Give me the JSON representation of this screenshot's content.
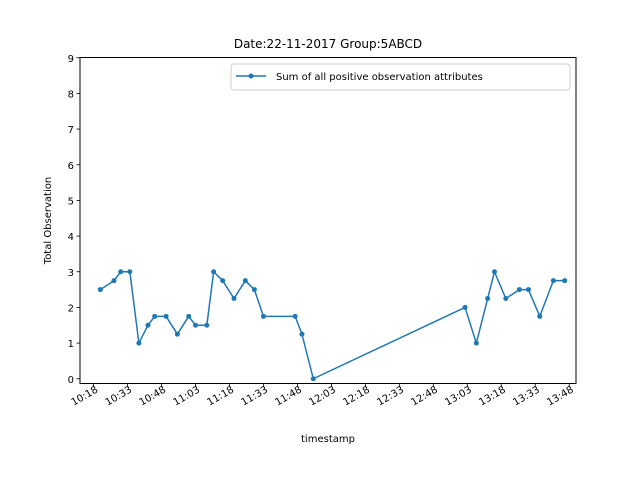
{
  "chart_data": {
    "type": "line",
    "title": "Date:22-11-2017  Group:5ABCD",
    "xlabel": "timestamp",
    "ylabel": "Total Observation",
    "ylim": [
      0,
      9
    ],
    "yticks": [
      "0",
      "1",
      "2",
      "3",
      "4",
      "5",
      "6",
      "7",
      "8",
      "9"
    ],
    "xlim": [
      "10:12",
      "13:51"
    ],
    "xticks": [
      "10:18",
      "10:33",
      "10:48",
      "11:03",
      "11:18",
      "11:33",
      "11:48",
      "12:03",
      "12:18",
      "12:33",
      "12:48",
      "13:03",
      "13:18",
      "13:33",
      "13:48"
    ],
    "grid": false,
    "legend_position": "top-right",
    "series": [
      {
        "name": "Sum of all positive observation attributes",
        "color": "#1f77b4",
        "marker": "circle",
        "x": [
          "10:21",
          "10:27",
          "10:30",
          "10:34",
          "10:38",
          "10:42",
          "10:45",
          "10:50",
          "10:55",
          "11:00",
          "11:03",
          "11:08",
          "11:11",
          "11:15",
          "11:20",
          "11:25",
          "11:29",
          "11:33",
          "11:47",
          "11:50",
          "11:55",
          "13:02",
          "13:07",
          "13:12",
          "13:15",
          "13:20",
          "13:26",
          "13:30",
          "13:35",
          "13:41",
          "13:46"
        ],
        "values": [
          2.5,
          2.75,
          3.0,
          3.0,
          1.0,
          1.5,
          1.75,
          1.75,
          1.25,
          1.75,
          1.5,
          1.5,
          3.0,
          2.75,
          2.25,
          2.75,
          2.5,
          1.75,
          1.75,
          1.25,
          0.0,
          2.0,
          1.0,
          2.25,
          3.0,
          2.25,
          2.5,
          2.5,
          1.75,
          2.75,
          2.75
        ]
      }
    ]
  }
}
